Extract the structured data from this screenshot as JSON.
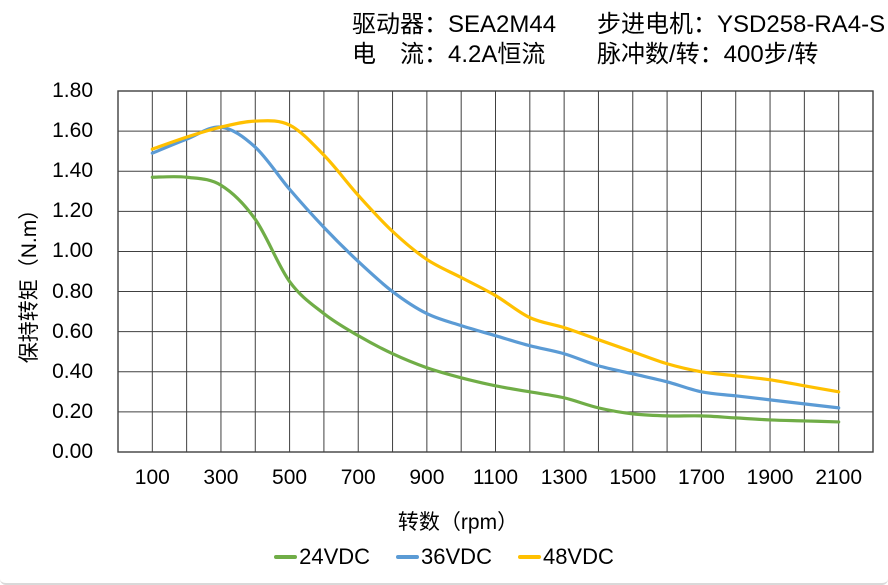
{
  "header": {
    "driver_label": "驱动器：",
    "driver_value": "SEA2M44",
    "current_label": "电　流：",
    "current_value": "4.2A恒流",
    "motor_label": "步进电机：",
    "motor_value": "YSD258-RA4-S",
    "pulse_label": "脉冲数/转：",
    "pulse_value": "400步/转"
  },
  "chart_data": {
    "type": "line",
    "title": "",
    "xlabel": "转数（rpm）",
    "ylabel": "保持转矩（N.m）",
    "xlim": [
      0,
      2200
    ],
    "ylim": [
      0,
      1.8
    ],
    "grid": true,
    "grid_x_step": 100,
    "grid_y_step": 0.2,
    "axis_color": "#404040",
    "text_color": "#000000",
    "legend_position": "bottom",
    "x_ticks": [
      100,
      300,
      500,
      700,
      900,
      1100,
      1300,
      1500,
      1700,
      1900,
      2100
    ],
    "x_tick_labels": [
      "100",
      "300",
      "500",
      "700",
      "900",
      "1100",
      "1300",
      "1500",
      "1700",
      "1900",
      "2100"
    ],
    "y_ticks": [
      0,
      0.2,
      0.4,
      0.6,
      0.8,
      1.0,
      1.2,
      1.4,
      1.6,
      1.8
    ],
    "y_tick_labels": [
      "0.00",
      "0.20",
      "0.40",
      "0.60",
      "0.80",
      "1.00",
      "1.20",
      "1.40",
      "1.60",
      "1.80"
    ],
    "x": [
      100,
      200,
      300,
      400,
      500,
      600,
      700,
      800,
      900,
      1000,
      1100,
      1200,
      1300,
      1400,
      1500,
      1600,
      1700,
      1800,
      1900,
      2000,
      2100
    ],
    "series": [
      {
        "name": "24VDC",
        "color": "#70AD47",
        "values": [
          1.37,
          1.37,
          1.33,
          1.16,
          0.85,
          0.69,
          0.58,
          0.49,
          0.42,
          0.37,
          0.33,
          0.3,
          0.27,
          0.22,
          0.19,
          0.18,
          0.18,
          0.17,
          0.16,
          0.155,
          0.15
        ]
      },
      {
        "name": "36VDC",
        "color": "#5B9BD5",
        "values": [
          1.49,
          1.56,
          1.62,
          1.52,
          1.31,
          1.12,
          0.95,
          0.8,
          0.69,
          0.63,
          0.58,
          0.53,
          0.49,
          0.43,
          0.39,
          0.35,
          0.3,
          0.28,
          0.26,
          0.24,
          0.22
        ]
      },
      {
        "name": "48VDC",
        "color": "#FFC000",
        "values": [
          1.51,
          1.57,
          1.62,
          1.65,
          1.63,
          1.48,
          1.28,
          1.1,
          0.96,
          0.87,
          0.78,
          0.67,
          0.62,
          0.56,
          0.5,
          0.44,
          0.4,
          0.38,
          0.36,
          0.33,
          0.3
        ]
      }
    ]
  }
}
